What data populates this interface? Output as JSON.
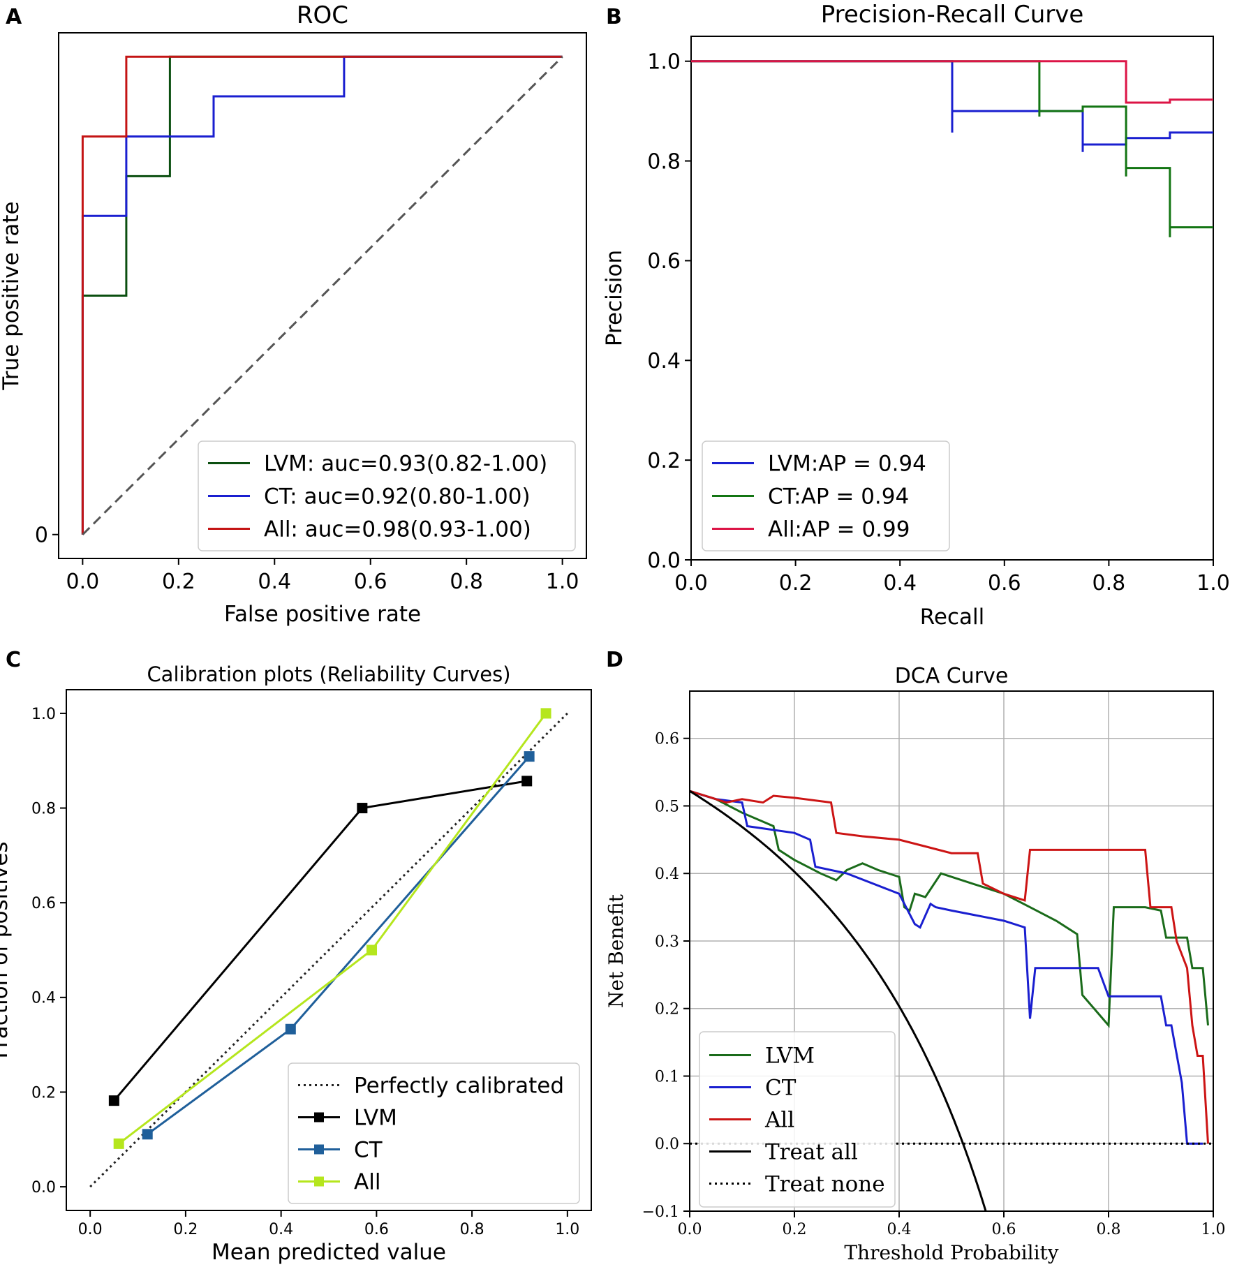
{
  "chart_data": [
    {
      "id": "A",
      "panel_label": "A",
      "type": "line",
      "title": "ROC",
      "xlabel": "False positive rate",
      "ylabel": "True positive rate",
      "xlim": [
        -0.05,
        1.05
      ],
      "ylim": [
        -0.05,
        1.05
      ],
      "xticks": [
        {
          "v": 0.0,
          "t": "0.0"
        },
        {
          "v": 0.2,
          "t": "0.2"
        },
        {
          "v": 0.4,
          "t": "0.4"
        },
        {
          "v": 0.6,
          "t": "0.6"
        },
        {
          "v": 0.8,
          "t": "0.8"
        },
        {
          "v": 1.0,
          "t": "1.0"
        }
      ],
      "yticks": [
        {
          "v": 0.0,
          "t": "0"
        }
      ],
      "grid": false,
      "legend": "lower-right",
      "series": [
        {
          "name": "LVM",
          "label": "LVM: auc=0.93(0.82-1.00)",
          "color": "#0b4f10",
          "style": "solid",
          "x": [
            0,
            0,
            0.091,
            0.091,
            0.182,
            0.182,
            1.0
          ],
          "y": [
            0,
            0.5,
            0.5,
            0.75,
            0.75,
            1.0,
            1.0
          ]
        },
        {
          "name": "CT",
          "label": "CT: auc=0.92(0.80-1.00)",
          "color": "#1a1fd0",
          "style": "solid",
          "x": [
            0,
            0,
            0.091,
            0.091,
            0.273,
            0.273,
            0.545,
            0.545,
            1.0
          ],
          "y": [
            0,
            0.667,
            0.667,
            0.833,
            0.833,
            0.917,
            0.917,
            1.0,
            1.0
          ]
        },
        {
          "name": "All",
          "label": "All: auc=0.98(0.93-1.00)",
          "color": "#c41414",
          "style": "solid",
          "x": [
            0,
            0,
            0.091,
            0.091,
            1.0
          ],
          "y": [
            0,
            0.833,
            0.833,
            1.0,
            1.0
          ]
        },
        {
          "name": "diagonal",
          "label": "",
          "color": "#555555",
          "style": "dashed",
          "x": [
            0,
            1
          ],
          "y": [
            0,
            1
          ]
        }
      ]
    },
    {
      "id": "B",
      "panel_label": "B",
      "type": "line",
      "title": "Precision-Recall Curve",
      "xlabel": "Recall",
      "ylabel": "Precision",
      "xlim": [
        0.0,
        1.0
      ],
      "ylim": [
        0.0,
        1.05
      ],
      "xticks": [
        {
          "v": 0.0,
          "t": "0.0"
        },
        {
          "v": 0.2,
          "t": "0.2"
        },
        {
          "v": 0.4,
          "t": "0.4"
        },
        {
          "v": 0.6,
          "t": "0.6"
        },
        {
          "v": 0.8,
          "t": "0.8"
        },
        {
          "v": 1.0,
          "t": "1.0"
        }
      ],
      "yticks": [
        {
          "v": 0.0,
          "t": "0.0"
        },
        {
          "v": 0.2,
          "t": "0.2"
        },
        {
          "v": 0.4,
          "t": "0.4"
        },
        {
          "v": 0.6,
          "t": "0.6"
        },
        {
          "v": 0.8,
          "t": "0.8"
        },
        {
          "v": 1.0,
          "t": "1.0"
        }
      ],
      "grid": false,
      "legend": "lower-left",
      "series": [
        {
          "name": "LVM",
          "label": "LVM:AP = 0.94",
          "color": "#1a1fd0",
          "style": "solid",
          "x": [
            0,
            0.5,
            0.5,
            0.5,
            0.75,
            0.75,
            0.75,
            0.833,
            0.833,
            0.917,
            0.917,
            1.0
          ],
          "y": [
            1.0,
            1.0,
            0.857,
            0.9,
            0.9,
            0.818,
            0.833,
            0.833,
            0.846,
            0.846,
            0.857,
            0.857
          ]
        },
        {
          "name": "CT",
          "label": "CT:AP = 0.94",
          "color": "#137513",
          "style": "solid",
          "x": [
            0,
            0.667,
            0.667,
            0.667,
            0.75,
            0.75,
            0.833,
            0.833,
            0.833,
            0.917,
            0.917,
            0.917,
            1.0
          ],
          "y": [
            1.0,
            1.0,
            0.889,
            0.9,
            0.9,
            0.909,
            0.909,
            0.769,
            0.786,
            0.786,
            0.647,
            0.667,
            0.667
          ]
        },
        {
          "name": "All",
          "label": "All:AP = 0.99",
          "color": "#dc1446",
          "style": "solid",
          "x": [
            0,
            0.833,
            0.833,
            0.917,
            0.917,
            1.0
          ],
          "y": [
            1.0,
            1.0,
            0.917,
            0.917,
            0.923,
            0.923
          ]
        }
      ]
    },
    {
      "id": "C",
      "panel_label": "C",
      "type": "line",
      "title": "Calibration plots (Reliability Curves)",
      "xlabel": "Mean predicted value",
      "ylabel": "Fraction of positives",
      "xlim": [
        -0.05,
        1.05
      ],
      "ylim": [
        -0.05,
        1.05
      ],
      "xticks": [
        {
          "v": 0.0,
          "t": "0.0"
        },
        {
          "v": 0.2,
          "t": "0.2"
        },
        {
          "v": 0.4,
          "t": "0.4"
        },
        {
          "v": 0.6,
          "t": "0.6"
        },
        {
          "v": 0.8,
          "t": "0.8"
        },
        {
          "v": 1.0,
          "t": "1.0"
        }
      ],
      "yticks": [
        {
          "v": 0.0,
          "t": "0.0"
        },
        {
          "v": 0.2,
          "t": "0.2"
        },
        {
          "v": 0.4,
          "t": "0.4"
        },
        {
          "v": 0.6,
          "t": "0.6"
        },
        {
          "v": 0.8,
          "t": "0.8"
        },
        {
          "v": 1.0,
          "t": "1.0"
        }
      ],
      "grid": false,
      "legend": "lower-right",
      "series": [
        {
          "name": "Perfectly calibrated",
          "label": "Perfectly calibrated",
          "color": "#222222",
          "style": "dotted",
          "markers": false,
          "x": [
            0,
            1
          ],
          "y": [
            0,
            1
          ]
        },
        {
          "name": "LVM",
          "label": "LVM",
          "color": "#000000",
          "style": "solid",
          "markers": true,
          "x": [
            0.05,
            0.57,
            0.915
          ],
          "y": [
            0.182,
            0.8,
            0.857
          ]
        },
        {
          "name": "CT",
          "label": "CT",
          "color": "#1f5f9a",
          "style": "solid",
          "markers": true,
          "x": [
            0.12,
            0.42,
            0.92
          ],
          "y": [
            0.111,
            0.333,
            0.909
          ]
        },
        {
          "name": "All",
          "label": "All",
          "color": "#b5e61d",
          "style": "solid",
          "markers": true,
          "x": [
            0.06,
            0.59,
            0.955
          ],
          "y": [
            0.091,
            0.5,
            1.0
          ]
        }
      ]
    },
    {
      "id": "D",
      "panel_label": "D",
      "type": "line",
      "title": "DCA Curve",
      "xlabel": "Threshold Probability",
      "ylabel": "Net Benefit",
      "xlim": [
        0.0,
        1.0
      ],
      "ylim": [
        -0.1,
        0.67
      ],
      "xticks": [
        {
          "v": 0.0,
          "t": "0.0"
        },
        {
          "v": 0.2,
          "t": "0.2"
        },
        {
          "v": 0.4,
          "t": "0.4"
        },
        {
          "v": 0.6,
          "t": "0.6"
        },
        {
          "v": 0.8,
          "t": "0.8"
        },
        {
          "v": 1.0,
          "t": "1.0"
        }
      ],
      "yticks": [
        {
          "v": -0.1,
          "t": "−0.1"
        },
        {
          "v": 0.0,
          "t": "0.0"
        },
        {
          "v": 0.1,
          "t": "0.1"
        },
        {
          "v": 0.2,
          "t": "0.2"
        },
        {
          "v": 0.3,
          "t": "0.3"
        },
        {
          "v": 0.4,
          "t": "0.4"
        },
        {
          "v": 0.5,
          "t": "0.5"
        },
        {
          "v": 0.6,
          "t": "0.6"
        }
      ],
      "grid": true,
      "legend": "lower-left",
      "prevalence": 0.522,
      "series": [
        {
          "name": "LVM",
          "label": "LVM",
          "color": "#1a6b1a",
          "style": "solid",
          "x": [
            0,
            0.05,
            0.1,
            0.16,
            0.17,
            0.2,
            0.25,
            0.28,
            0.3,
            0.33,
            0.36,
            0.4,
            0.41,
            0.42,
            0.43,
            0.45,
            0.48,
            0.5,
            0.6,
            0.65,
            0.7,
            0.74,
            0.75,
            0.8,
            0.81,
            0.87,
            0.9,
            0.91,
            0.95,
            0.96,
            0.97,
            0.98,
            0.99
          ],
          "y": [
            0.522,
            0.51,
            0.49,
            0.47,
            0.435,
            0.42,
            0.4,
            0.39,
            0.405,
            0.415,
            0.405,
            0.395,
            0.35,
            0.345,
            0.37,
            0.365,
            0.4,
            0.395,
            0.37,
            0.35,
            0.33,
            0.31,
            0.22,
            0.175,
            0.35,
            0.35,
            0.345,
            0.305,
            0.305,
            0.26,
            0.26,
            0.26,
            0.175
          ]
        },
        {
          "name": "CT",
          "label": "CT",
          "color": "#1a1fd0",
          "style": "solid",
          "x": [
            0,
            0.05,
            0.1,
            0.11,
            0.2,
            0.23,
            0.24,
            0.3,
            0.4,
            0.43,
            0.44,
            0.46,
            0.47,
            0.5,
            0.6,
            0.64,
            0.65,
            0.66,
            0.7,
            0.78,
            0.8,
            0.9,
            0.91,
            0.92,
            0.94,
            0.95,
            0.96,
            0.97,
            0.98
          ],
          "y": [
            0.522,
            0.51,
            0.505,
            0.47,
            0.46,
            0.45,
            0.41,
            0.4,
            0.37,
            0.325,
            0.32,
            0.355,
            0.35,
            0.345,
            0.33,
            0.32,
            0.185,
            0.26,
            0.26,
            0.26,
            0.218,
            0.218,
            0.175,
            0.175,
            0.09,
            0.0,
            0.0,
            0.0,
            0.0
          ]
        },
        {
          "name": "All",
          "label": "All",
          "color": "#cc1414",
          "style": "solid",
          "x": [
            0,
            0.03,
            0.07,
            0.1,
            0.14,
            0.16,
            0.2,
            0.27,
            0.28,
            0.33,
            0.4,
            0.45,
            0.5,
            0.55,
            0.56,
            0.6,
            0.64,
            0.65,
            0.8,
            0.87,
            0.88,
            0.9,
            0.92,
            0.93,
            0.95,
            0.96,
            0.97,
            0.98,
            0.99
          ],
          "y": [
            0.522,
            0.515,
            0.505,
            0.51,
            0.505,
            0.515,
            0.512,
            0.505,
            0.46,
            0.455,
            0.45,
            0.44,
            0.43,
            0.43,
            0.385,
            0.37,
            0.36,
            0.435,
            0.435,
            0.435,
            0.35,
            0.35,
            0.35,
            0.3,
            0.26,
            0.175,
            0.13,
            0.13,
            0.0
          ]
        },
        {
          "name": "Treat all",
          "label": "Treat all",
          "color": "#000000",
          "style": "solid",
          "curve": "treat_all"
        },
        {
          "name": "Treat none",
          "label": "Treat none",
          "color": "#000000",
          "style": "dotted",
          "x": [
            0,
            1
          ],
          "y": [
            0,
            0
          ]
        }
      ]
    }
  ]
}
